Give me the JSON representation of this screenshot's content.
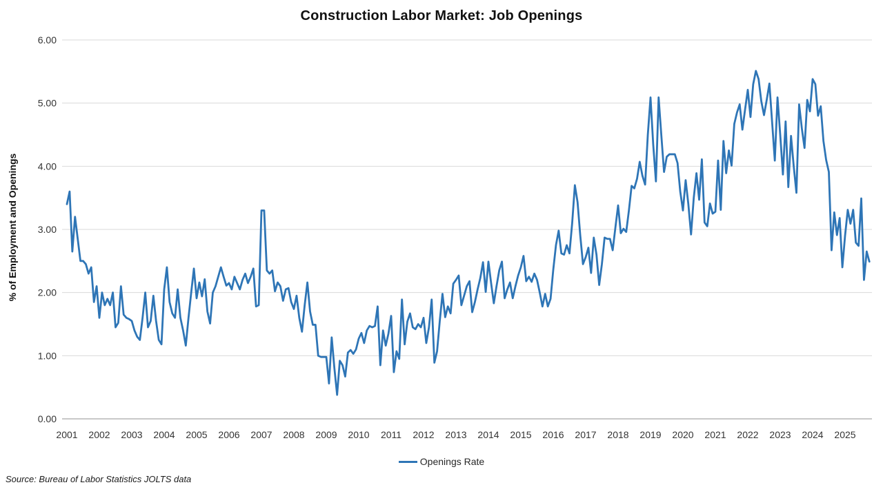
{
  "title": "Construction Labor Market: Job Openings",
  "legend": {
    "label": "Openings Rate"
  },
  "source_note": "Source: Bureau of Labor Statistics JOLTS data",
  "colors": {
    "line": "#2E75B6",
    "gridline": "#D9D9D9",
    "axis_line": "#A6A6A6",
    "tick_text": "#333333"
  },
  "chart_data": {
    "type": "line",
    "title": "Construction Labor Market: Job Openings",
    "xlabel": "",
    "ylabel": "% of Employment and Openings",
    "legend_entries": [
      "Openings Rate"
    ],
    "legend_position": "bottom",
    "grid": "horizontal",
    "ylim": [
      0,
      6
    ],
    "y_tick_labels": [
      "0.00",
      "1.00",
      "2.00",
      "3.00",
      "4.00",
      "5.00",
      "6.00"
    ],
    "x_tick_labels": [
      "2001",
      "2002",
      "2003",
      "2004",
      "2005",
      "2006",
      "2007",
      "2008",
      "2009",
      "2010",
      "2011",
      "2012",
      "2013",
      "2014",
      "2015",
      "2016",
      "2017",
      "2018",
      "2019",
      "2020",
      "2021",
      "2022",
      "2023",
      "2024",
      "2025"
    ],
    "x_start": "2001-01",
    "frequency": "monthly",
    "series": [
      {
        "name": "Openings Rate",
        "values": [
          3.4,
          3.6,
          2.65,
          3.2,
          2.85,
          2.5,
          2.5,
          2.45,
          2.3,
          2.4,
          1.85,
          2.1,
          1.6,
          2.0,
          1.8,
          1.9,
          1.8,
          2.0,
          1.45,
          1.52,
          2.1,
          1.65,
          1.6,
          1.58,
          1.55,
          1.4,
          1.3,
          1.25,
          1.6,
          2.0,
          1.45,
          1.55,
          1.95,
          1.55,
          1.25,
          1.18,
          2.05,
          2.4,
          1.85,
          1.67,
          1.6,
          2.05,
          1.6,
          1.4,
          1.16,
          1.6,
          2.0,
          2.38,
          1.91,
          2.16,
          1.94,
          2.21,
          1.7,
          1.51,
          2.0,
          2.1,
          2.25,
          2.4,
          2.25,
          2.11,
          2.15,
          2.05,
          2.25,
          2.15,
          2.05,
          2.2,
          2.3,
          2.15,
          2.25,
          2.38,
          1.78,
          1.8,
          3.3,
          3.3,
          2.35,
          2.3,
          2.35,
          2.02,
          2.16,
          2.1,
          1.87,
          2.05,
          2.07,
          1.85,
          1.74,
          1.95,
          1.6,
          1.38,
          1.8,
          2.16,
          1.7,
          1.49,
          1.49,
          1.0,
          0.98,
          0.98,
          0.98,
          0.56,
          1.29,
          0.8,
          0.38,
          0.92,
          0.85,
          0.67,
          1.05,
          1.09,
          1.03,
          1.1,
          1.27,
          1.36,
          1.2,
          1.4,
          1.47,
          1.45,
          1.47,
          1.78,
          0.85,
          1.4,
          1.16,
          1.35,
          1.63,
          0.74,
          1.07,
          0.95,
          1.89,
          1.18,
          1.54,
          1.67,
          1.45,
          1.42,
          1.5,
          1.45,
          1.6,
          1.2,
          1.45,
          1.89,
          0.89,
          1.07,
          1.55,
          1.98,
          1.61,
          1.78,
          1.67,
          2.14,
          2.2,
          2.27,
          1.8,
          1.95,
          2.1,
          2.18,
          1.69,
          1.85,
          2.05,
          2.23,
          2.48,
          2.01,
          2.49,
          2.15,
          1.83,
          2.1,
          2.35,
          2.49,
          1.91,
          2.05,
          2.16,
          1.91,
          2.1,
          2.27,
          2.4,
          2.58,
          2.18,
          2.25,
          2.17,
          2.3,
          2.2,
          2.0,
          1.78,
          1.98,
          1.78,
          1.9,
          2.36,
          2.75,
          2.98,
          2.62,
          2.6,
          2.75,
          2.62,
          3.1,
          3.7,
          3.43,
          2.9,
          2.45,
          2.56,
          2.71,
          2.31,
          2.87,
          2.6,
          2.12,
          2.45,
          2.87,
          2.85,
          2.85,
          2.67,
          3.03,
          3.38,
          2.94,
          3.01,
          2.96,
          3.3,
          3.69,
          3.65,
          3.8,
          4.07,
          3.85,
          3.71,
          4.5,
          5.09,
          4.34,
          3.76,
          5.09,
          4.49,
          3.91,
          4.15,
          4.19,
          4.19,
          4.19,
          4.05,
          3.6,
          3.3,
          3.78,
          3.4,
          2.92,
          3.5,
          3.89,
          3.47,
          4.11,
          3.11,
          3.05,
          3.41,
          3.25,
          3.28,
          4.09,
          3.31,
          4.4,
          3.89,
          4.25,
          4.01,
          4.67,
          4.85,
          4.98,
          4.58,
          4.9,
          5.21,
          4.78,
          5.3,
          5.51,
          5.38,
          5.03,
          4.81,
          5.05,
          5.31,
          4.7,
          4.09,
          5.09,
          4.5,
          3.87,
          4.71,
          3.67,
          4.48,
          4.0,
          3.58,
          4.98,
          4.6,
          4.29,
          5.05,
          4.87,
          5.38,
          5.3,
          4.8,
          4.95,
          4.4,
          4.1,
          3.91,
          2.67,
          3.27,
          2.91,
          3.18,
          2.4,
          2.9,
          3.31,
          3.09,
          3.31,
          2.79,
          2.74,
          3.49,
          2.2,
          2.65,
          2.49
        ]
      }
    ]
  }
}
